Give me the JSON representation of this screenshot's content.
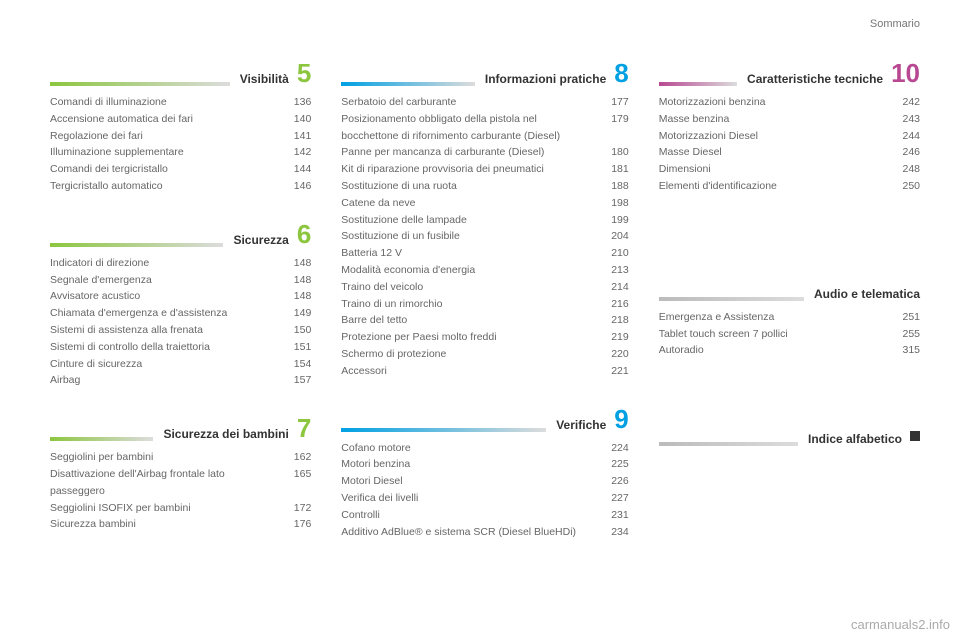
{
  "running_title": "Sommario",
  "watermark": "carmanuals2.info",
  "chapters": {
    "visibilita": {
      "num": "5",
      "color": "#8cc63f",
      "title": "Visibilità",
      "stripe_from": "#8cc63f",
      "stripe_to": "#dcdcdc",
      "items": [
        {
          "label": "Comandi di illuminazione",
          "page": "136"
        },
        {
          "label": "Accensione automatica dei fari",
          "page": "140"
        },
        {
          "label": "Regolazione dei fari",
          "page": "141"
        },
        {
          "label": "Illuminazione supplementare",
          "page": "142"
        },
        {
          "label": "Comandi dei tergicristallo",
          "page": "144"
        },
        {
          "label": "Tergicristallo automatico",
          "page": "146"
        }
      ]
    },
    "sicurezza": {
      "num": "6",
      "color": "#8cc63f",
      "title": "Sicurezza",
      "stripe_from": "#8cc63f",
      "stripe_to": "#dcdcdc",
      "items": [
        {
          "label": "Indicatori di direzione",
          "page": "148"
        },
        {
          "label": "Segnale d'emergenza",
          "page": "148"
        },
        {
          "label": "Avvisatore acustico",
          "page": "148"
        },
        {
          "label": "Chiamata d'emergenza e d'assistenza",
          "page": "149"
        },
        {
          "label": "Sistemi di assistenza alla frenata",
          "page": "150"
        },
        {
          "label": "Sistemi di controllo della traiettoria",
          "page": "151"
        },
        {
          "label": "Cinture di sicurezza",
          "page": "154"
        },
        {
          "label": "Airbag",
          "page": "157"
        }
      ]
    },
    "sicurezza_bambini": {
      "num": "7",
      "color": "#8cc63f",
      "title": "Sicurezza dei bambini",
      "stripe_from": "#8cc63f",
      "stripe_to": "#dcdcdc",
      "items": [
        {
          "label": "Seggiolini per bambini",
          "page": "162"
        },
        {
          "label": "Disattivazione dell'Airbag frontale lato passeggero",
          "page": "165"
        },
        {
          "label": "Seggiolini ISOFIX per bambini",
          "page": "172"
        },
        {
          "label": "Sicurezza bambini",
          "page": "176"
        }
      ]
    },
    "info_pratiche": {
      "num": "8",
      "color": "#00a0e3",
      "title": "Informazioni pratiche",
      "stripe_from": "#00a0e3",
      "stripe_to": "#dcdcdc",
      "items": [
        {
          "label": "Serbatoio del carburante",
          "page": "177"
        },
        {
          "label": "Posizionamento obbligato della pistola nel bocchettone di rifornimento carburante (Diesel)",
          "page": "179"
        },
        {
          "label": "Panne per mancanza di carburante (Diesel)",
          "page": "180"
        },
        {
          "label": "Kit di riparazione provvisoria dei pneumatici",
          "page": "181"
        },
        {
          "label": "Sostituzione di una ruota",
          "page": "188"
        },
        {
          "label": "Catene da neve",
          "page": "198"
        },
        {
          "label": "Sostituzione delle lampade",
          "page": "199"
        },
        {
          "label": "Sostituzione di un fusibile",
          "page": "204"
        },
        {
          "label": "Batteria 12 V",
          "page": "210"
        },
        {
          "label": "Modalità economia d'energia",
          "page": "213"
        },
        {
          "label": "Traino del veicolo",
          "page": "214"
        },
        {
          "label": "Traino di un rimorchio",
          "page": "216"
        },
        {
          "label": "Barre del tetto",
          "page": "218"
        },
        {
          "label": "Protezione per Paesi molto freddi",
          "page": "219"
        },
        {
          "label": "Schermo di protezione",
          "page": "220"
        },
        {
          "label": "Accessori",
          "page": "221"
        }
      ]
    },
    "verifiche": {
      "num": "9",
      "color": "#00a0e3",
      "title": "Verifiche",
      "stripe_from": "#00a0e3",
      "stripe_to": "#dcdcdc",
      "items": [
        {
          "label": "Cofano motore",
          "page": "224"
        },
        {
          "label": "Motori benzina",
          "page": "225"
        },
        {
          "label": "Motori Diesel",
          "page": "226"
        },
        {
          "label": "Verifica dei livelli",
          "page": "227"
        },
        {
          "label": "Controlli",
          "page": "231"
        },
        {
          "label": "Additivo AdBlue® e sistema SCR (Diesel BlueHDi)",
          "page": "234"
        }
      ]
    },
    "caratteristiche": {
      "num": "10",
      "color": "#b74891",
      "title": "Caratteristiche tecniche",
      "stripe_from": "#b74891",
      "stripe_to": "#dcdcdc",
      "items": [
        {
          "label": "Motorizzazioni benzina",
          "page": "242"
        },
        {
          "label": "Masse benzina",
          "page": "243"
        },
        {
          "label": "Motorizzazioni Diesel",
          "page": "244"
        },
        {
          "label": "Masse Diesel",
          "page": "246"
        },
        {
          "label": "Dimensioni",
          "page": "248"
        },
        {
          "label": "Elementi d'identificazione",
          "page": "250"
        }
      ]
    },
    "audio": {
      "num": "",
      "color": "#333",
      "title": "Audio e telematica",
      "stripe_from": "#bbbbbb",
      "stripe_to": "#dcdcdc",
      "items": [
        {
          "label": "Emergenza e Assistenza",
          "page": "251"
        },
        {
          "label": "Tablet touch screen 7 pollici",
          "page": "255"
        },
        {
          "label": "Autoradio",
          "page": "315"
        }
      ]
    },
    "indice": {
      "num": "",
      "color": "#333",
      "title": "Indice alfabetico",
      "stripe_from": "#bbbbbb",
      "stripe_to": "#dcdcdc",
      "items": []
    }
  }
}
